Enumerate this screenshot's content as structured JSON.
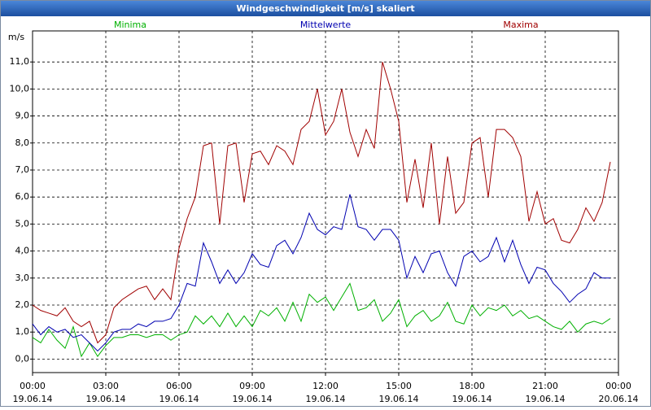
{
  "chart_data": {
    "type": "line",
    "title": "Windgeschwindigkeit [m/s] skaliert",
    "ylabel": "m/s",
    "x": [
      0,
      20,
      40,
      60,
      80,
      100,
      120,
      140,
      160,
      180,
      200,
      220,
      240,
      260,
      280,
      300,
      320,
      340,
      360,
      380,
      400,
      420,
      440,
      460,
      480,
      500,
      520,
      540,
      560,
      580,
      600,
      620,
      640,
      660,
      680,
      700,
      720,
      740,
      760,
      780,
      800,
      820,
      840,
      860,
      880,
      900,
      920,
      940,
      960,
      980,
      1000,
      1020,
      1040,
      1060,
      1080,
      1100,
      1120,
      1140,
      1160,
      1180,
      1200,
      1220,
      1240,
      1260,
      1280,
      1300,
      1320,
      1340,
      1360,
      1380,
      1400,
      1420,
      1440
    ],
    "series": [
      {
        "name": "Minima",
        "color": "#00b000",
        "values": [
          0.8,
          0.6,
          1.1,
          0.7,
          0.4,
          1.2,
          0.1,
          0.6,
          0.1,
          0.5,
          0.8,
          0.8,
          0.9,
          0.9,
          0.8,
          0.9,
          0.9,
          0.7,
          0.9,
          1.0,
          1.6,
          1.3,
          1.6,
          1.2,
          1.7,
          1.2,
          1.6,
          1.2,
          1.8,
          1.6,
          1.9,
          1.4,
          2.1,
          1.4,
          2.4,
          2.1,
          2.3,
          1.8,
          2.3,
          2.8,
          1.8,
          1.9,
          2.2,
          1.4,
          1.7,
          2.2,
          1.2,
          1.6,
          1.8,
          1.4,
          1.6,
          2.1,
          1.4,
          1.3,
          2.0,
          1.6,
          1.9,
          1.8,
          2.0,
          1.6,
          1.8,
          1.5,
          1.6,
          1.4,
          1.2,
          1.1,
          1.4,
          1.0,
          1.3,
          1.4,
          1.3,
          1.5,
          null
        ]
      },
      {
        "name": "Mittelwerte",
        "color": "#0000b0",
        "values": [
          1.3,
          0.9,
          1.2,
          1.0,
          1.1,
          0.8,
          0.9,
          0.6,
          0.3,
          0.6,
          1.0,
          1.1,
          1.1,
          1.3,
          1.2,
          1.4,
          1.4,
          1.5,
          2.0,
          2.8,
          2.7,
          4.3,
          3.6,
          2.8,
          3.3,
          2.8,
          3.2,
          3.9,
          3.5,
          3.4,
          4.2,
          4.4,
          3.9,
          4.5,
          5.4,
          4.8,
          4.6,
          4.9,
          4.8,
          6.1,
          4.9,
          4.8,
          4.4,
          4.8,
          4.8,
          4.4,
          3.0,
          3.8,
          3.2,
          3.9,
          4.0,
          3.2,
          2.7,
          3.8,
          4.0,
          3.6,
          3.8,
          4.5,
          3.6,
          4.4,
          3.5,
          2.8,
          3.4,
          3.3,
          2.8,
          2.5,
          2.1,
          2.4,
          2.6,
          3.2,
          3.0,
          3.0,
          null
        ]
      },
      {
        "name": "Maxima",
        "color": "#a00000",
        "values": [
          2.0,
          1.8,
          1.7,
          1.6,
          1.9,
          1.4,
          1.2,
          1.4,
          0.6,
          0.9,
          1.9,
          2.2,
          2.4,
          2.6,
          2.7,
          2.2,
          2.6,
          2.2,
          4.1,
          5.2,
          6.0,
          7.9,
          8.0,
          5.0,
          7.9,
          8.0,
          5.8,
          7.6,
          7.7,
          7.2,
          7.9,
          7.7,
          7.2,
          8.5,
          8.8,
          10.0,
          8.3,
          8.8,
          10.0,
          8.4,
          7.5,
          8.5,
          7.8,
          11.0,
          10.0,
          8.8,
          5.8,
          7.4,
          5.6,
          8.0,
          5.0,
          7.5,
          5.4,
          5.8,
          8.0,
          8.2,
          6.0,
          8.5,
          8.5,
          8.2,
          7.5,
          5.1,
          6.2,
          5.0,
          5.2,
          4.4,
          4.3,
          4.8,
          5.6,
          5.1,
          5.8,
          7.3,
          null
        ]
      }
    ],
    "xlim": [
      0,
      1440
    ],
    "xticks": [
      {
        "value": 0,
        "label": "00:00",
        "date": "19.06.14"
      },
      {
        "value": 180,
        "label": "03:00",
        "date": "19.06.14"
      },
      {
        "value": 360,
        "label": "06:00",
        "date": "19.06.14"
      },
      {
        "value": 540,
        "label": "09:00",
        "date": "19.06.14"
      },
      {
        "value": 720,
        "label": "12:00",
        "date": "19.06.14"
      },
      {
        "value": 900,
        "label": "15:00",
        "date": "19.06.14"
      },
      {
        "value": 1080,
        "label": "18:00",
        "date": "19.06.14"
      },
      {
        "value": 1260,
        "label": "21:00",
        "date": "19.06.14"
      },
      {
        "value": 1440,
        "label": "00:00",
        "date": "20.06.14"
      }
    ],
    "ylim": [
      -0.5,
      12.15
    ],
    "yticks": [
      {
        "value": 0,
        "label": "0,0"
      },
      {
        "value": 1,
        "label": "1,0"
      },
      {
        "value": 2,
        "label": "2,0"
      },
      {
        "value": 3,
        "label": "3,0"
      },
      {
        "value": 4,
        "label": "4,0"
      },
      {
        "value": 5,
        "label": "5,0"
      },
      {
        "value": 6,
        "label": "6,0"
      },
      {
        "value": 7,
        "label": "7,0"
      },
      {
        "value": 8,
        "label": "8,0"
      },
      {
        "value": 9,
        "label": "9,0"
      },
      {
        "value": 10,
        "label": "10,0"
      },
      {
        "value": 11,
        "label": "11,0"
      }
    ],
    "grid": true
  }
}
